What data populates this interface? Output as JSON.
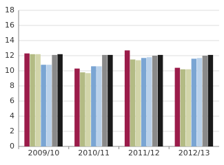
{
  "chart_data": {
    "type": "bar",
    "categories": [
      "2009/10",
      "2010/11",
      "2011/12",
      "2012/13"
    ],
    "series": [
      {
        "color": "#9b1c4a",
        "values": [
          12.3,
          10.3,
          12.7,
          10.4
        ]
      },
      {
        "color": "#b3bb84",
        "values": [
          12.2,
          9.8,
          11.5,
          10.2
        ]
      },
      {
        "color": "#d2d5aa",
        "values": [
          12.2,
          9.7,
          11.4,
          10.2
        ]
      },
      {
        "color": "#7aa5d3",
        "values": [
          10.8,
          10.6,
          11.7,
          11.6
        ]
      },
      {
        "color": "#b9d1ea",
        "values": [
          10.8,
          10.6,
          11.8,
          11.7
        ]
      },
      {
        "color": "#8a8a8a",
        "values": [
          12.1,
          12.1,
          12.0,
          12.0
        ]
      },
      {
        "color": "#1a1a1a",
        "values": [
          12.2,
          12.1,
          12.1,
          12.1
        ]
      }
    ],
    "ylim": [
      0,
      18
    ],
    "yticks": [
      0,
      2,
      4,
      6,
      8,
      10,
      12,
      14,
      16,
      18
    ],
    "grid": true
  }
}
